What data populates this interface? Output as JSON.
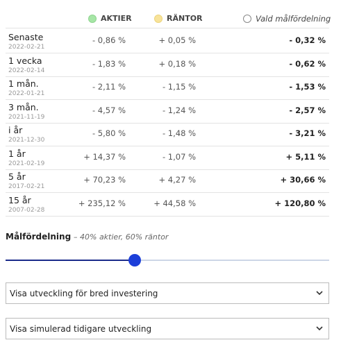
{
  "header": {
    "aktier": "AKTIER",
    "rantor": "RÄNTOR",
    "vald": "Vald målfördelning"
  },
  "table": {
    "rows": [
      {
        "label": "Senaste",
        "date": "2022-02-21",
        "aktier": "- 0,86 %",
        "rantor": "+ 0,05 %",
        "vald": "- 0,32 %"
      },
      {
        "label": "1 vecka",
        "date": "2022-02-14",
        "aktier": "- 1,83 %",
        "rantor": "+ 0,18 %",
        "vald": "- 0,62 %"
      },
      {
        "label": "1 mån.",
        "date": "2022-01-21",
        "aktier": "- 2,11 %",
        "rantor": "- 1,15 %",
        "vald": "- 1,53 %"
      },
      {
        "label": "3 mån.",
        "date": "2021-11-19",
        "aktier": "- 4,57 %",
        "rantor": "- 1,24 %",
        "vald": "- 2,57 %"
      },
      {
        "label": "i år",
        "date": "2021-12-30",
        "aktier": "- 5,80 %",
        "rantor": "- 1,48 %",
        "vald": "- 3,21 %"
      },
      {
        "label": "1 år",
        "date": "2021-02-19",
        "aktier": "+ 14,37 %",
        "rantor": "- 1,07 %",
        "vald": "+ 5,11 %"
      },
      {
        "label": "5 år",
        "date": "2017-02-21",
        "aktier": "+ 70,23 %",
        "rantor": "+ 4,27 %",
        "vald": "+ 30,66 %"
      },
      {
        "label": "15 år",
        "date": "2007-02-28",
        "aktier": "+ 235,12 %",
        "rantor": "+ 44,58 %",
        "vald": "+ 120,80 %"
      }
    ]
  },
  "slider": {
    "title": "Målfördelning",
    "subtitle": "– 40% aktier, 60% räntor"
  },
  "selects": [
    "Visa utveckling för bred investering",
    "Visa simulerad tidigare utveckling"
  ]
}
